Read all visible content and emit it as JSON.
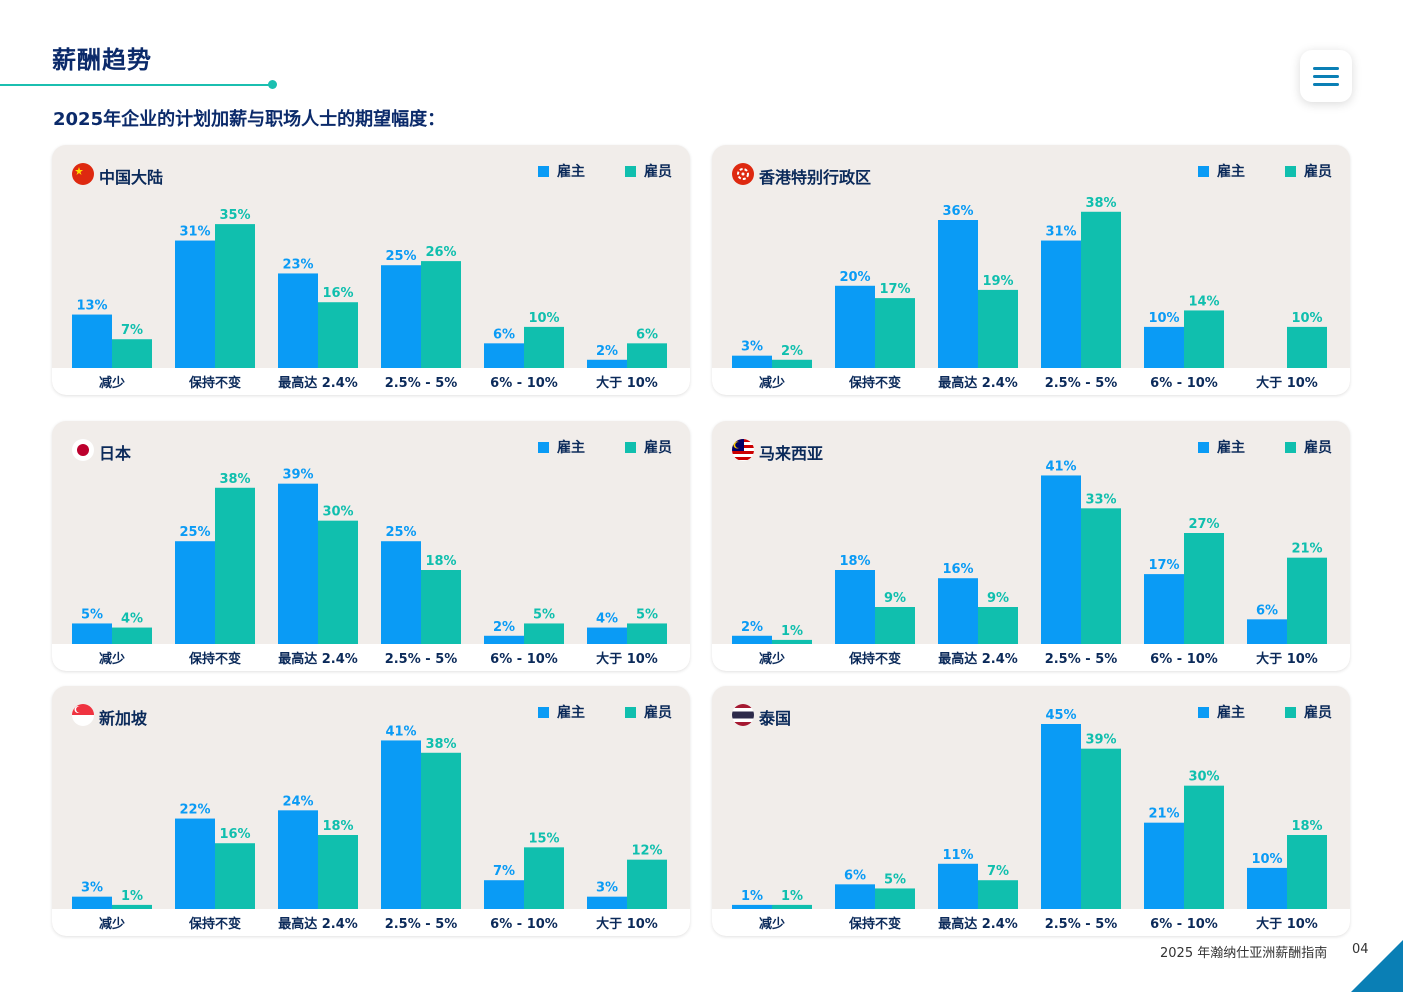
{
  "header": {
    "title": "薪酬趋势",
    "subtitle": "2025年企业的计划加薪与职场人士的期望幅度："
  },
  "footer": {
    "text": "2025 年瀚纳仕亚洲薪酬指南",
    "page": "04"
  },
  "colors": {
    "employer": "#0a9bf5",
    "employee": "#10bfae",
    "panel_bg": "#f1edea"
  },
  "legend": {
    "employer": "雇主",
    "employee": "雇员"
  },
  "chart_data": [
    {
      "type": "bar",
      "title": "中国大陆",
      "flag": "china-flag-icon",
      "categories": [
        "减少",
        "保持不变",
        "最高达 2.4%",
        "2.5% - 5%",
        "6% - 10%",
        "大于 10%"
      ],
      "series": [
        {
          "name": "雇主",
          "values": [
            13,
            31,
            23,
            25,
            6,
            2
          ]
        },
        {
          "name": "雇员",
          "values": [
            7,
            35,
            16,
            26,
            10,
            6
          ]
        }
      ],
      "ylim": [
        0,
        45
      ]
    },
    {
      "type": "bar",
      "title": "香港特别行政区",
      "flag": "hong-kong-flag-icon",
      "categories": [
        "减少",
        "保持不变",
        "最高达 2.4%",
        "2.5% - 5%",
        "6% - 10%",
        "大于 10%"
      ],
      "series": [
        {
          "name": "雇主",
          "values": [
            3,
            20,
            36,
            31,
            10,
            null
          ]
        },
        {
          "name": "雇员",
          "values": [
            2,
            17,
            19,
            38,
            14,
            10
          ]
        }
      ],
      "ylim": [
        0,
        45
      ]
    },
    {
      "type": "bar",
      "title": "日本",
      "flag": "japan-flag-icon",
      "categories": [
        "减少",
        "保持不变",
        "最高达 2.4%",
        "2.5% - 5%",
        "6% - 10%",
        "大于 10%"
      ],
      "series": [
        {
          "name": "雇主",
          "values": [
            5,
            25,
            39,
            25,
            2,
            4
          ]
        },
        {
          "name": "雇员",
          "values": [
            4,
            38,
            30,
            18,
            5,
            5
          ]
        }
      ],
      "ylim": [
        0,
        45
      ]
    },
    {
      "type": "bar",
      "title": "马来西亚",
      "flag": "malaysia-flag-icon",
      "categories": [
        "减少",
        "保持不变",
        "最高达 2.4%",
        "2.5% - 5%",
        "6% - 10%",
        "大于 10%"
      ],
      "series": [
        {
          "name": "雇主",
          "values": [
            2,
            18,
            16,
            41,
            17,
            6
          ]
        },
        {
          "name": "雇员",
          "values": [
            1,
            9,
            9,
            33,
            27,
            21
          ]
        }
      ],
      "ylim": [
        0,
        45
      ]
    },
    {
      "type": "bar",
      "title": "新加坡",
      "flag": "singapore-flag-icon",
      "categories": [
        "减少",
        "保持不变",
        "最高达 2.4%",
        "2.5% - 5%",
        "6% - 10%",
        "大于 10%"
      ],
      "series": [
        {
          "name": "雇主",
          "values": [
            3,
            22,
            24,
            41,
            7,
            3
          ]
        },
        {
          "name": "雇员",
          "values": [
            1,
            16,
            18,
            38,
            15,
            12
          ]
        }
      ],
      "ylim": [
        0,
        45
      ]
    },
    {
      "type": "bar",
      "title": "泰国",
      "flag": "thailand-flag-icon",
      "categories": [
        "减少",
        "保持不变",
        "最高达 2.4%",
        "2.5% - 5%",
        "6% - 10%",
        "大于 10%"
      ],
      "series": [
        {
          "name": "雇主",
          "values": [
            1,
            6,
            11,
            45,
            21,
            10
          ]
        },
        {
          "name": "雇员",
          "values": [
            1,
            5,
            7,
            39,
            30,
            18
          ]
        }
      ],
      "ylim": [
        0,
        45
      ]
    }
  ]
}
